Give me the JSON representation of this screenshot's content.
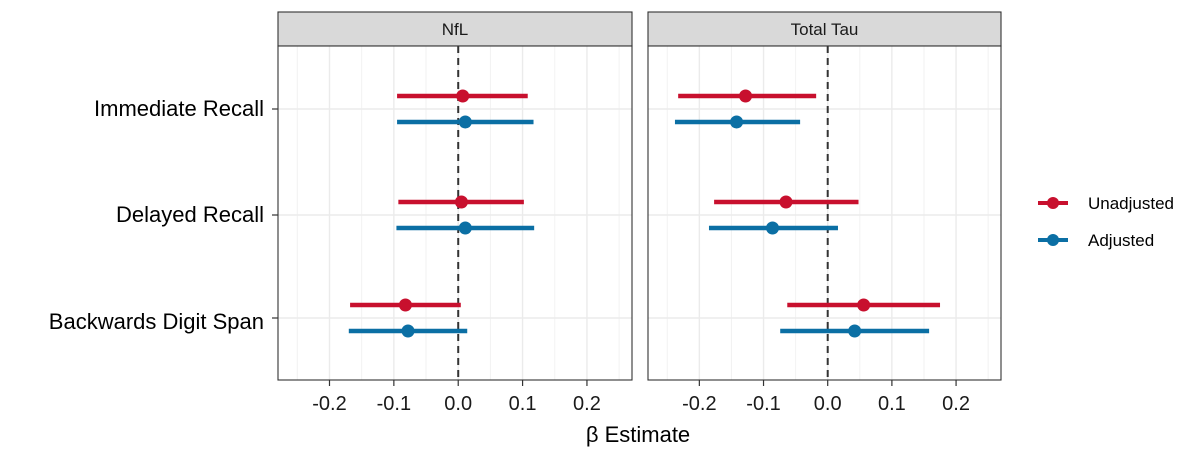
{
  "chart_data": {
    "type": "forest",
    "xlabel": "β Estimate",
    "xlim": [
      -0.28,
      0.27
    ],
    "xticks": [
      -0.2,
      -0.1,
      0.0,
      0.1,
      0.2
    ],
    "xtick_labels": [
      "-0.2",
      "-0.1",
      "0.0",
      "0.1",
      "0.2"
    ],
    "reference_line": 0.0,
    "grid": true,
    "legend_position": "right",
    "categories": [
      "Immediate Recall",
      "Delayed Recall",
      "Backwards Digit Span"
    ],
    "series_colors": {
      "Unadjusted": "#C8102E",
      "Adjusted": "#0B6FA4"
    },
    "legend": [
      {
        "name": "Unadjusted",
        "color": "#C8102E"
      },
      {
        "name": "Adjusted",
        "color": "#0B6FA4"
      }
    ],
    "panels": [
      {
        "title": "NfL",
        "rows": [
          {
            "category": "Immediate Recall",
            "Unadjusted": {
              "estimate": 0.007,
              "lower": -0.095,
              "upper": 0.108
            },
            "Adjusted": {
              "estimate": 0.011,
              "lower": -0.095,
              "upper": 0.117
            }
          },
          {
            "category": "Delayed Recall",
            "Unadjusted": {
              "estimate": 0.005,
              "lower": -0.093,
              "upper": 0.102
            },
            "Adjusted": {
              "estimate": 0.011,
              "lower": -0.096,
              "upper": 0.118
            }
          },
          {
            "category": "Backwards Digit Span",
            "Unadjusted": {
              "estimate": -0.082,
              "lower": -0.168,
              "upper": 0.004
            },
            "Adjusted": {
              "estimate": -0.078,
              "lower": -0.17,
              "upper": 0.014
            }
          }
        ]
      },
      {
        "title": "Total Tau",
        "rows": [
          {
            "category": "Immediate Recall",
            "Unadjusted": {
              "estimate": -0.128,
              "lower": -0.233,
              "upper": -0.018
            },
            "Adjusted": {
              "estimate": -0.142,
              "lower": -0.238,
              "upper": -0.043
            }
          },
          {
            "category": "Delayed Recall",
            "Unadjusted": {
              "estimate": -0.065,
              "lower": -0.177,
              "upper": 0.048
            },
            "Adjusted": {
              "estimate": -0.086,
              "lower": -0.185,
              "upper": 0.016
            }
          },
          {
            "category": "Backwards Digit Span",
            "Unadjusted": {
              "estimate": 0.056,
              "lower": -0.063,
              "upper": 0.175
            },
            "Adjusted": {
              "estimate": 0.042,
              "lower": -0.074,
              "upper": 0.158
            }
          }
        ]
      }
    ]
  }
}
